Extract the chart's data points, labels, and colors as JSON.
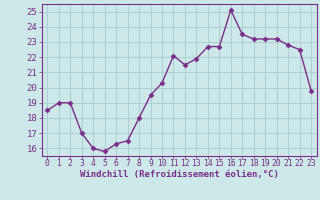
{
  "x": [
    0,
    1,
    2,
    3,
    4,
    5,
    6,
    7,
    8,
    9,
    10,
    11,
    12,
    13,
    14,
    15,
    16,
    17,
    18,
    19,
    20,
    21,
    22,
    23
  ],
  "y": [
    18.5,
    19.0,
    19.0,
    17.0,
    16.0,
    15.8,
    16.3,
    16.5,
    18.0,
    19.5,
    20.3,
    22.1,
    21.5,
    21.9,
    22.7,
    22.7,
    25.1,
    23.5,
    23.2,
    23.2,
    23.2,
    22.8,
    22.5,
    19.8
  ],
  "line_color": "#7b2d8b",
  "marker": "D",
  "marker_size": 2.5,
  "bg_color": "#cce8e8",
  "grid_color": "#aacccc",
  "xlabel": "Windchill (Refroidissement éolien,°C)",
  "xlabel_fontsize": 6.5,
  "yticks": [
    16,
    17,
    18,
    19,
    20,
    21,
    22,
    23,
    24,
    25
  ],
  "xticks": [
    0,
    1,
    2,
    3,
    4,
    5,
    6,
    7,
    8,
    9,
    10,
    11,
    12,
    13,
    14,
    15,
    16,
    17,
    18,
    19,
    20,
    21,
    22,
    23
  ],
  "ylim": [
    15.5,
    25.5
  ],
  "xlim": [
    -0.5,
    23.5
  ],
  "ytick_fontsize": 6.5,
  "xtick_fontsize": 5.8,
  "line_width": 1.0
}
